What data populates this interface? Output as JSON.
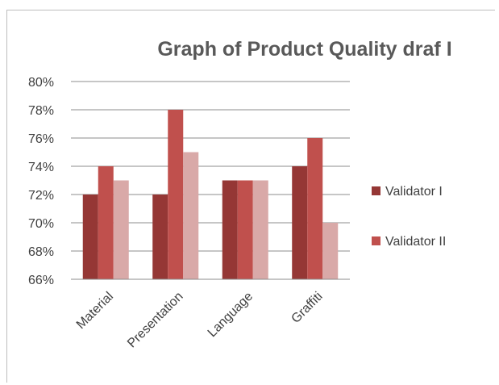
{
  "chart_data": {
    "type": "bar",
    "title": "Graph of Product Quality draf I",
    "categories": [
      "Material",
      "Presentation",
      "Language",
      "Graffiti"
    ],
    "series": [
      {
        "name": "Validator I",
        "color": "#953735",
        "values": [
          72,
          72,
          73,
          74
        ]
      },
      {
        "name": "Validator II",
        "color": "#C0504D",
        "values": [
          74,
          78,
          73,
          76
        ]
      },
      {
        "name": "",
        "color": "#D9A9A8",
        "values": [
          73,
          75,
          73,
          70
        ]
      }
    ],
    "ylim": [
      66,
      80
    ],
    "yticks": [
      "66%",
      "68%",
      "70%",
      "72%",
      "74%",
      "76%",
      "78%",
      "80%"
    ],
    "grid": true,
    "legend_position": "right"
  }
}
